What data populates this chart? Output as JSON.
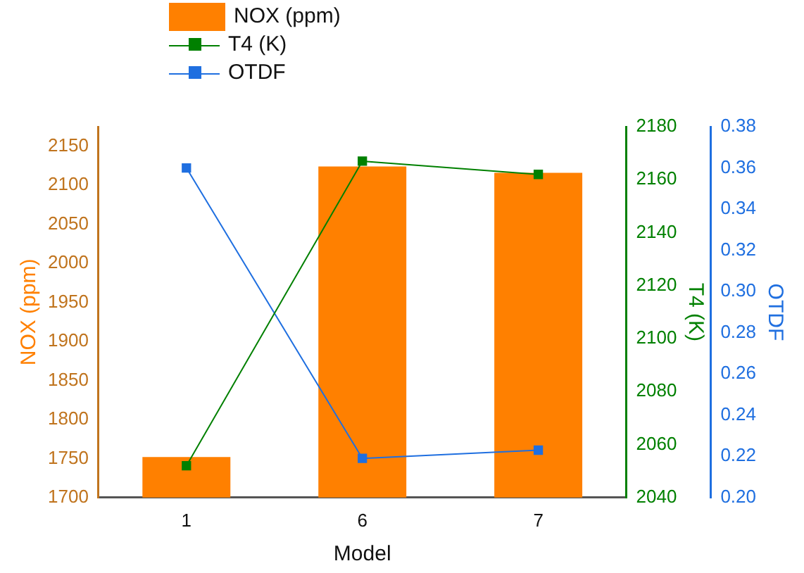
{
  "chart_data": {
    "type": "bar",
    "xlabel": "Model",
    "ylabel": "NOX (ppm)",
    "y2label": "T4 (K)",
    "y3label": "OTDF",
    "categories": [
      "1",
      "6",
      "7"
    ],
    "series": [
      {
        "name": "NOX (ppm)",
        "color": "#ff8000",
        "values": [
          1752,
          2124,
          2116
        ]
      },
      {
        "name": "T4 (K)",
        "type": "line",
        "axis": "y2",
        "color": "#008000",
        "values": [
          2052,
          2167,
          2162
        ]
      },
      {
        "name": "OTDF",
        "type": "line",
        "axis": "y3",
        "color": "#1f6fe0",
        "values": [
          0.36,
          0.219,
          0.223
        ]
      }
    ],
    "ylim": [
      1700,
      2175
    ],
    "yticks": [
      1700,
      1750,
      1800,
      1850,
      1900,
      1950,
      2000,
      2050,
      2100,
      2150
    ],
    "y2lim": [
      2040,
      2180
    ],
    "y2ticks": [
      2040,
      2060,
      2080,
      2100,
      2120,
      2140,
      2160,
      2180
    ],
    "y3lim": [
      0.2,
      0.38
    ],
    "y3ticks": [
      {
        "value": 0.2,
        "label": "0.20"
      },
      {
        "value": 0.22,
        "label": "0.22"
      },
      {
        "value": 0.24,
        "label": "0.24"
      },
      {
        "value": 0.26,
        "label": "0.26"
      },
      {
        "value": 0.28,
        "label": "0.28"
      },
      {
        "value": 0.3,
        "label": "0.30"
      },
      {
        "value": 0.32,
        "label": "0.32"
      },
      {
        "value": 0.34,
        "label": "0.34"
      },
      {
        "value": 0.36,
        "label": "0.36"
      },
      {
        "value": 0.38,
        "label": "0.38"
      }
    ],
    "grid": false,
    "legend": "top",
    "marker": "square",
    "line_style": "solid"
  }
}
